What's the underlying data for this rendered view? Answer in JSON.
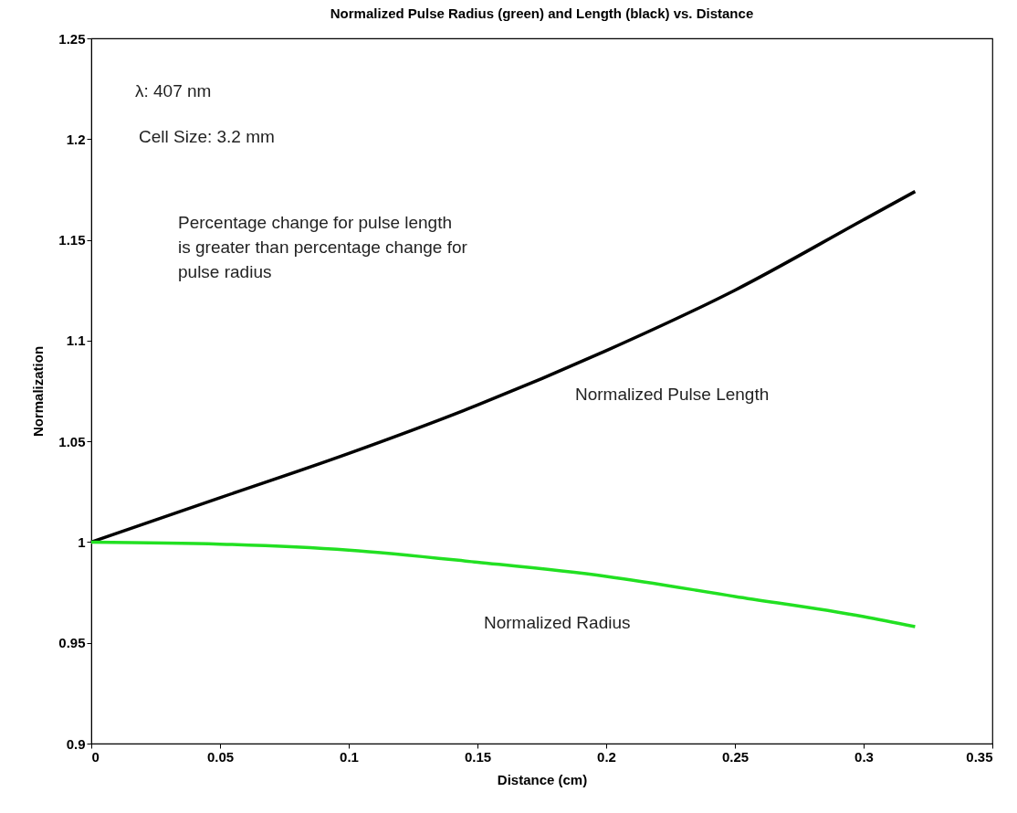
{
  "chart_data": {
    "type": "line",
    "title": "Normalized Pulse Radius (green) and Length (black) vs. Distance",
    "xlabel": "Distance (cm)",
    "ylabel": "Normalization",
    "x": [
      0,
      0.05,
      0.1,
      0.15,
      0.2,
      0.25,
      0.3,
      0.32
    ],
    "series": [
      {
        "name": "Normalized Pulse Length",
        "color": "#000000",
        "values": [
          1.0,
          1.022,
          1.044,
          1.068,
          1.095,
          1.125,
          1.16,
          1.174
        ]
      },
      {
        "name": "Normalized Radius",
        "color": "#22e022",
        "values": [
          1.0,
          0.999,
          0.996,
          0.99,
          0.983,
          0.973,
          0.963,
          0.958
        ]
      }
    ],
    "annotations": [
      "λ: 407 nm",
      "Cell Size: 3.2 mm",
      "Percentage change for pulse length\nis greater than percentage change for\npulse radius"
    ],
    "xlim": [
      0,
      0.35
    ],
    "xticks": [
      0,
      0.05,
      0.1,
      0.15,
      0.2,
      0.25,
      0.3,
      0.35
    ],
    "ylim": [
      0.9,
      1.25
    ],
    "yticks": [
      0.9,
      0.95,
      1,
      1.05,
      1.1,
      1.15,
      1.2,
      1.25
    ],
    "grid": false,
    "legend": false,
    "marker": "none",
    "line_style": "solid"
  }
}
